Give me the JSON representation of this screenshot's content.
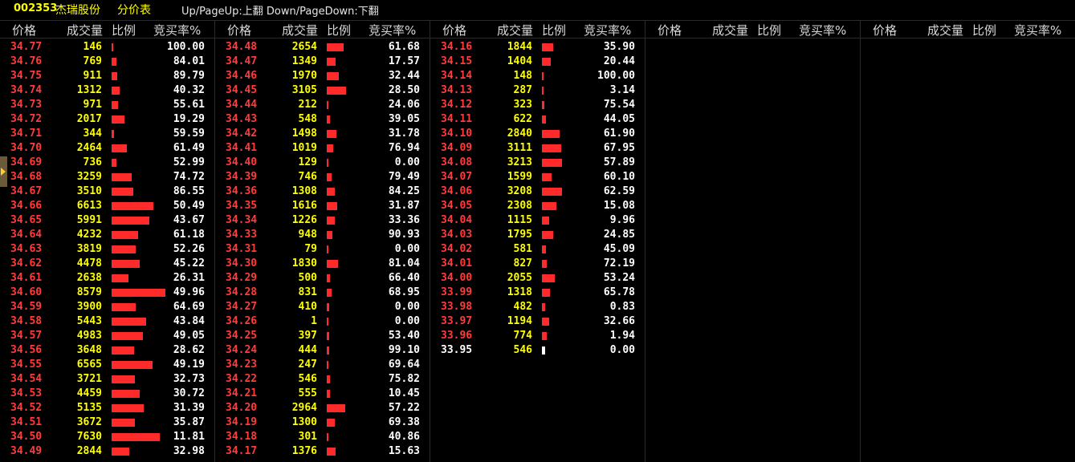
{
  "header": {
    "code": "002353",
    "name": "杰瑞股份",
    "title": "分价表",
    "hint": "Up/PageUp:上翻 Down/PageDown:下翻"
  },
  "columns_header": {
    "price": "价格",
    "volume": "成交量",
    "ratio": "比例",
    "rate": "竞买率%"
  },
  "colors": {
    "up": "#ff3c3c",
    "flat": "#ffffff",
    "volume": "#ffff00",
    "bar": "#ff2b2b",
    "divider": "#8b0000"
  },
  "reference_price": "33.95",
  "max_volume": 8579,
  "panels": [
    [
      {
        "price": "34.77",
        "volume": "146",
        "rate": "100.00"
      },
      {
        "price": "34.76",
        "volume": "769",
        "rate": "84.01"
      },
      {
        "price": "34.75",
        "volume": "911",
        "rate": "89.79"
      },
      {
        "price": "34.74",
        "volume": "1312",
        "rate": "40.32"
      },
      {
        "price": "34.73",
        "volume": "971",
        "rate": "55.61"
      },
      {
        "price": "34.72",
        "volume": "2017",
        "rate": "19.29"
      },
      {
        "price": "34.71",
        "volume": "344",
        "rate": "59.59"
      },
      {
        "price": "34.70",
        "volume": "2464",
        "rate": "61.49"
      },
      {
        "price": "34.69",
        "volume": "736",
        "rate": "52.99"
      },
      {
        "price": "34.68",
        "volume": "3259",
        "rate": "74.72"
      },
      {
        "price": "34.67",
        "volume": "3510",
        "rate": "86.55"
      },
      {
        "price": "34.66",
        "volume": "6613",
        "rate": "50.49"
      },
      {
        "price": "34.65",
        "volume": "5991",
        "rate": "43.67"
      },
      {
        "price": "34.64",
        "volume": "4232",
        "rate": "61.18"
      },
      {
        "price": "34.63",
        "volume": "3819",
        "rate": "52.26"
      },
      {
        "price": "34.62",
        "volume": "4478",
        "rate": "45.22"
      },
      {
        "price": "34.61",
        "volume": "2638",
        "rate": "26.31"
      },
      {
        "price": "34.60",
        "volume": "8579",
        "rate": "49.96"
      },
      {
        "price": "34.59",
        "volume": "3900",
        "rate": "64.69"
      },
      {
        "price": "34.58",
        "volume": "5443",
        "rate": "43.84"
      },
      {
        "price": "34.57",
        "volume": "4983",
        "rate": "49.05"
      },
      {
        "price": "34.56",
        "volume": "3648",
        "rate": "28.62"
      },
      {
        "price": "34.55",
        "volume": "6565",
        "rate": "49.19"
      },
      {
        "price": "34.54",
        "volume": "3721",
        "rate": "32.73"
      },
      {
        "price": "34.53",
        "volume": "4459",
        "rate": "30.72"
      },
      {
        "price": "34.52",
        "volume": "5135",
        "rate": "31.39"
      },
      {
        "price": "34.51",
        "volume": "3672",
        "rate": "35.87"
      },
      {
        "price": "34.50",
        "volume": "7630",
        "rate": "11.81"
      },
      {
        "price": "34.49",
        "volume": "2844",
        "rate": "32.98"
      }
    ],
    [
      {
        "price": "34.48",
        "volume": "2654",
        "rate": "61.68"
      },
      {
        "price": "34.47",
        "volume": "1349",
        "rate": "17.57"
      },
      {
        "price": "34.46",
        "volume": "1970",
        "rate": "32.44"
      },
      {
        "price": "34.45",
        "volume": "3105",
        "rate": "28.50"
      },
      {
        "price": "34.44",
        "volume": "212",
        "rate": "24.06"
      },
      {
        "price": "34.43",
        "volume": "548",
        "rate": "39.05"
      },
      {
        "price": "34.42",
        "volume": "1498",
        "rate": "31.78"
      },
      {
        "price": "34.41",
        "volume": "1019",
        "rate": "76.94"
      },
      {
        "price": "34.40",
        "volume": "129",
        "rate": "0.00"
      },
      {
        "price": "34.39",
        "volume": "746",
        "rate": "79.49"
      },
      {
        "price": "34.36",
        "volume": "1308",
        "rate": "84.25"
      },
      {
        "price": "34.35",
        "volume": "1616",
        "rate": "31.87"
      },
      {
        "price": "34.34",
        "volume": "1226",
        "rate": "33.36"
      },
      {
        "price": "34.33",
        "volume": "948",
        "rate": "90.93"
      },
      {
        "price": "34.31",
        "volume": "79",
        "rate": "0.00"
      },
      {
        "price": "34.30",
        "volume": "1830",
        "rate": "81.04"
      },
      {
        "price": "34.29",
        "volume": "500",
        "rate": "66.40"
      },
      {
        "price": "34.28",
        "volume": "831",
        "rate": "68.95"
      },
      {
        "price": "34.27",
        "volume": "410",
        "rate": "0.00"
      },
      {
        "price": "34.26",
        "volume": "1",
        "rate": "0.00"
      },
      {
        "price": "34.25",
        "volume": "397",
        "rate": "53.40"
      },
      {
        "price": "34.24",
        "volume": "444",
        "rate": "99.10"
      },
      {
        "price": "34.23",
        "volume": "247",
        "rate": "69.64"
      },
      {
        "price": "34.22",
        "volume": "546",
        "rate": "75.82"
      },
      {
        "price": "34.21",
        "volume": "555",
        "rate": "10.45"
      },
      {
        "price": "34.20",
        "volume": "2964",
        "rate": "57.22"
      },
      {
        "price": "34.19",
        "volume": "1300",
        "rate": "69.38"
      },
      {
        "price": "34.18",
        "volume": "301",
        "rate": "40.86"
      },
      {
        "price": "34.17",
        "volume": "1376",
        "rate": "15.63"
      }
    ],
    [
      {
        "price": "34.16",
        "volume": "1844",
        "rate": "35.90"
      },
      {
        "price": "34.15",
        "volume": "1404",
        "rate": "20.44"
      },
      {
        "price": "34.14",
        "volume": "148",
        "rate": "100.00"
      },
      {
        "price": "34.13",
        "volume": "287",
        "rate": "3.14"
      },
      {
        "price": "34.12",
        "volume": "323",
        "rate": "75.54"
      },
      {
        "price": "34.11",
        "volume": "622",
        "rate": "44.05"
      },
      {
        "price": "34.10",
        "volume": "2840",
        "rate": "61.90"
      },
      {
        "price": "34.09",
        "volume": "3111",
        "rate": "67.95"
      },
      {
        "price": "34.08",
        "volume": "3213",
        "rate": "57.89"
      },
      {
        "price": "34.07",
        "volume": "1599",
        "rate": "60.10"
      },
      {
        "price": "34.06",
        "volume": "3208",
        "rate": "62.59"
      },
      {
        "price": "34.05",
        "volume": "2308",
        "rate": "15.08"
      },
      {
        "price": "34.04",
        "volume": "1115",
        "rate": "9.96"
      },
      {
        "price": "34.03",
        "volume": "1795",
        "rate": "24.85"
      },
      {
        "price": "34.02",
        "volume": "581",
        "rate": "45.09"
      },
      {
        "price": "34.01",
        "volume": "827",
        "rate": "72.19"
      },
      {
        "price": "34.00",
        "volume": "2055",
        "rate": "53.24"
      },
      {
        "price": "33.99",
        "volume": "1318",
        "rate": "65.78"
      },
      {
        "price": "33.98",
        "volume": "482",
        "rate": "0.83"
      },
      {
        "price": "33.97",
        "volume": "1194",
        "rate": "32.66"
      },
      {
        "price": "33.96",
        "volume": "774",
        "rate": "1.94"
      },
      {
        "price": "33.95",
        "volume": "546",
        "rate": "0.00"
      }
    ],
    [],
    []
  ]
}
